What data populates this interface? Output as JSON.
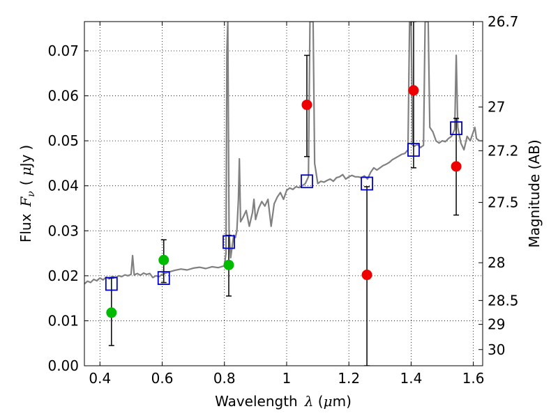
{
  "chart_data": {
    "type": "scatter",
    "xlabel": "Wavelength  λ (μm)",
    "xlabel_parts": {
      "text": "Wavelength",
      "symbol": "λ",
      "unit_open": " (",
      "unit": "μ",
      "unit_close": "m)"
    },
    "ylabel": "Flux  Fν ( μJy )",
    "ylabel_parts": {
      "text": "Flux",
      "symbol": "F",
      "sub": "ν",
      "open": "(",
      "unit": "μ",
      "unit_rest": "Jy",
      "close": ")"
    },
    "y2label": "Magnitude (AB)",
    "xlim": [
      0.35,
      1.63
    ],
    "ylim": [
      0.0,
      0.0765
    ],
    "grid": true,
    "x_ticks": [
      {
        "v": 0.4,
        "label": "0.4"
      },
      {
        "v": 0.6,
        "label": "0.6"
      },
      {
        "v": 0.8,
        "label": "0.8"
      },
      {
        "v": 1.0,
        "label": "1"
      },
      {
        "v": 1.2,
        "label": "1.2"
      },
      {
        "v": 1.4,
        "label": "1.4"
      },
      {
        "v": 1.6,
        "label": "1.6"
      }
    ],
    "y_ticks": [
      {
        "v": 0.0,
        "label": "0.00"
      },
      {
        "v": 0.01,
        "label": "0.01"
      },
      {
        "v": 0.02,
        "label": "0.02"
      },
      {
        "v": 0.03,
        "label": "0.03"
      },
      {
        "v": 0.04,
        "label": "0.04"
      },
      {
        "v": 0.05,
        "label": "0.05"
      },
      {
        "v": 0.06,
        "label": "0.06"
      },
      {
        "v": 0.07,
        "label": "0.07"
      }
    ],
    "y2_ticks": [
      {
        "flux": 0.0765,
        "label": "26.7"
      },
      {
        "flux": 0.0575,
        "label": "27"
      },
      {
        "flux": 0.0478,
        "label": "27.2"
      },
      {
        "flux": 0.0363,
        "label": "27.5"
      },
      {
        "flux": 0.0229,
        "label": "28"
      },
      {
        "flux": 0.0145,
        "label": "28.5"
      },
      {
        "flux": 0.0092,
        "label": "29"
      },
      {
        "flux": 0.0036,
        "label": "30"
      }
    ],
    "series": [
      {
        "type": "line",
        "color": "#808080",
        "points": [
          [
            0.35,
            0.0182
          ],
          [
            0.36,
            0.0188
          ],
          [
            0.37,
            0.0185
          ],
          [
            0.38,
            0.0192
          ],
          [
            0.39,
            0.0189
          ],
          [
            0.4,
            0.0195
          ],
          [
            0.41,
            0.0191
          ],
          [
            0.42,
            0.0197
          ],
          [
            0.43,
            0.0193
          ],
          [
            0.44,
            0.0199
          ],
          [
            0.45,
            0.0196
          ],
          [
            0.46,
            0.02
          ],
          [
            0.47,
            0.0198
          ],
          [
            0.48,
            0.0202
          ],
          [
            0.49,
            0.02
          ],
          [
            0.5,
            0.0203
          ],
          [
            0.505,
            0.0245
          ],
          [
            0.51,
            0.0202
          ],
          [
            0.52,
            0.0205
          ],
          [
            0.53,
            0.0201
          ],
          [
            0.54,
            0.0206
          ],
          [
            0.55,
            0.0203
          ],
          [
            0.56,
            0.0205
          ],
          [
            0.57,
            0.0196
          ],
          [
            0.58,
            0.02
          ],
          [
            0.59,
            0.0198
          ],
          [
            0.6,
            0.0203
          ],
          [
            0.62,
            0.0208
          ],
          [
            0.64,
            0.0212
          ],
          [
            0.66,
            0.0215
          ],
          [
            0.68,
            0.0213
          ],
          [
            0.7,
            0.0217
          ],
          [
            0.72,
            0.0219
          ],
          [
            0.74,
            0.0216
          ],
          [
            0.76,
            0.022
          ],
          [
            0.78,
            0.0218
          ],
          [
            0.8,
            0.0222
          ],
          [
            0.805,
            0.025
          ],
          [
            0.808,
            0.07
          ],
          [
            0.811,
            0.0765
          ],
          [
            0.815,
            0.03
          ],
          [
            0.82,
            0.024
          ],
          [
            0.83,
            0.029
          ],
          [
            0.835,
            0.0285
          ],
          [
            0.84,
            0.03
          ],
          [
            0.845,
            0.037
          ],
          [
            0.848,
            0.046
          ],
          [
            0.852,
            0.032
          ],
          [
            0.86,
            0.033
          ],
          [
            0.87,
            0.0345
          ],
          [
            0.88,
            0.031
          ],
          [
            0.89,
            0.034
          ],
          [
            0.895,
            0.037
          ],
          [
            0.9,
            0.0325
          ],
          [
            0.91,
            0.035
          ],
          [
            0.92,
            0.0365
          ],
          [
            0.93,
            0.0355
          ],
          [
            0.94,
            0.037
          ],
          [
            0.95,
            0.031
          ],
          [
            0.96,
            0.036
          ],
          [
            0.97,
            0.0375
          ],
          [
            0.98,
            0.0385
          ],
          [
            0.99,
            0.037
          ],
          [
            1.0,
            0.039
          ],
          [
            1.01,
            0.0395
          ],
          [
            1.02,
            0.0392
          ],
          [
            1.03,
            0.0398
          ],
          [
            1.04,
            0.0396
          ],
          [
            1.05,
            0.04
          ],
          [
            1.06,
            0.0405
          ],
          [
            1.07,
            0.042
          ],
          [
            1.075,
            0.0765
          ],
          [
            1.085,
            0.0765
          ],
          [
            1.09,
            0.045
          ],
          [
            1.1,
            0.0405
          ],
          [
            1.11,
            0.041
          ],
          [
            1.12,
            0.0408
          ],
          [
            1.13,
            0.0412
          ],
          [
            1.14,
            0.0415
          ],
          [
            1.15,
            0.041
          ],
          [
            1.16,
            0.0418
          ],
          [
            1.17,
            0.042
          ],
          [
            1.18,
            0.0425
          ],
          [
            1.19,
            0.0415
          ],
          [
            1.2,
            0.042
          ],
          [
            1.21,
            0.0423
          ],
          [
            1.22,
            0.042
          ],
          [
            1.23,
            0.042
          ],
          [
            1.24,
            0.0418
          ],
          [
            1.25,
            0.0422
          ],
          [
            1.26,
            0.0415
          ],
          [
            1.27,
            0.043
          ],
          [
            1.28,
            0.044
          ],
          [
            1.29,
            0.0435
          ],
          [
            1.3,
            0.044
          ],
          [
            1.31,
            0.0445
          ],
          [
            1.32,
            0.0448
          ],
          [
            1.33,
            0.0452
          ],
          [
            1.34,
            0.0458
          ],
          [
            1.35,
            0.0462
          ],
          [
            1.36,
            0.0466
          ],
          [
            1.37,
            0.047
          ],
          [
            1.38,
            0.0472
          ],
          [
            1.39,
            0.048
          ],
          [
            1.395,
            0.0765
          ],
          [
            1.4,
            0.0765
          ],
          [
            1.405,
            0.049
          ],
          [
            1.41,
            0.0488
          ],
          [
            1.42,
            0.0492
          ],
          [
            1.43,
            0.0485
          ],
          [
            1.44,
            0.049
          ],
          [
            1.445,
            0.0765
          ],
          [
            1.455,
            0.0765
          ],
          [
            1.46,
            0.053
          ],
          [
            1.47,
            0.052
          ],
          [
            1.48,
            0.05
          ],
          [
            1.49,
            0.0495
          ],
          [
            1.5,
            0.05
          ],
          [
            1.51,
            0.0498
          ],
          [
            1.52,
            0.0505
          ],
          [
            1.53,
            0.051
          ],
          [
            1.54,
            0.0525
          ],
          [
            1.545,
            0.069
          ],
          [
            1.55,
            0.053
          ],
          [
            1.56,
            0.0495
          ],
          [
            1.57,
            0.048
          ],
          [
            1.58,
            0.051
          ],
          [
            1.59,
            0.05
          ],
          [
            1.6,
            0.052
          ],
          [
            1.605,
            0.053
          ],
          [
            1.61,
            0.0505
          ],
          [
            1.62,
            0.05
          ],
          [
            1.63,
            0.05
          ]
        ]
      },
      {
        "type": "errorbar",
        "color": "#000000",
        "points": [
          {
            "x": 0.437,
            "lo": 0.0045,
            "hi": 0.0195
          },
          {
            "x": 0.605,
            "lo": 0.0185,
            "hi": 0.028
          },
          {
            "x": 0.814,
            "lo": 0.0155,
            "hi": 0.029
          },
          {
            "x": 1.065,
            "lo": 0.0465,
            "hi": 0.069
          },
          {
            "x": 1.258,
            "lo": 0.0,
            "hi": 0.0398
          },
          {
            "x": 1.408,
            "lo": 0.044,
            "hi": 0.0765
          },
          {
            "x": 1.545,
            "lo": 0.0335,
            "hi": 0.055
          }
        ]
      },
      {
        "type": "scatter",
        "marker": "open-square",
        "color": "#0000cc",
        "points": [
          [
            0.437,
            0.0182
          ],
          [
            0.605,
            0.0195
          ],
          [
            0.814,
            0.0275
          ],
          [
            1.065,
            0.041
          ],
          [
            1.258,
            0.0405
          ],
          [
            1.408,
            0.048
          ],
          [
            1.545,
            0.0528
          ]
        ]
      },
      {
        "type": "scatter",
        "marker": "filled-circle",
        "color": "#00bb00",
        "points": [
          [
            0.437,
            0.0118
          ],
          [
            0.605,
            0.0235
          ],
          [
            0.814,
            0.0224
          ]
        ]
      },
      {
        "type": "scatter",
        "marker": "filled-circle",
        "color": "#ee0000",
        "points": [
          [
            1.065,
            0.058
          ],
          [
            1.258,
            0.0202
          ],
          [
            1.408,
            0.0612
          ],
          [
            1.545,
            0.0443
          ]
        ]
      }
    ]
  }
}
